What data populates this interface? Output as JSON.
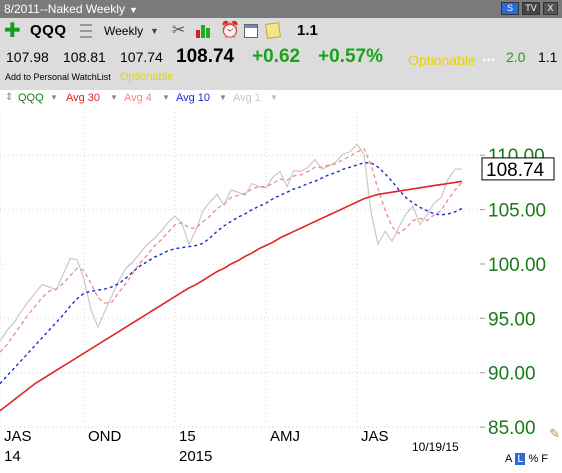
{
  "titlebar": {
    "title": "8/2011--Naked Weekly",
    "icons": [
      "S",
      "TV",
      "X"
    ]
  },
  "toolbar": {
    "symbol": "QQQ",
    "period": "Weekly",
    "version": "1.1"
  },
  "quote": {
    "open": "107.98",
    "high": "108.81",
    "low": "107.74",
    "last": "108.74",
    "change": "+0.62",
    "change_pct": "+0.57%",
    "optionable": "Optionable",
    "dots": "...",
    "extra_value": "2.0",
    "extra_value_right": "1.1",
    "watchlist_link": "Add to Personal WatchList",
    "optionable_small": "Optionable"
  },
  "legend": {
    "symbol": "QQQ",
    "avg30": "Avg 30",
    "avg4": "Avg 4",
    "avg10": "Avg 10",
    "avg1": "Avg 1"
  },
  "footer": {
    "letters": [
      "A",
      "L",
      "%",
      "F"
    ]
  },
  "colors": {
    "price_axis": "#1a7a1a",
    "avg30": "#e02424",
    "avg4": "#f08a8a",
    "avg10": "#1a2ad0",
    "avg1": "#c8c8c8",
    "grid": "#d4d4d4",
    "quote_green": "#1aa31a",
    "optionable": "#e8d400"
  },
  "icons": [
    "plus-icon",
    "list-icon",
    "chevron-down-icon",
    "tools-icon",
    "bar-chart-icon",
    "alarm-clock-icon",
    "calendar-icon",
    "note-icon",
    "pencil-icon"
  ],
  "chart_data": {
    "type": "line",
    "title": "",
    "ylim": [
      84,
      112.5
    ],
    "y_ticks": [
      85,
      90,
      95,
      100,
      105,
      110
    ],
    "y_tick_labels": [
      "85.00",
      "90.00",
      "95.00",
      "100.00",
      "105.00",
      "110.00"
    ],
    "last_price_label": "108.74",
    "last_price": 108.74,
    "x_ticks": [
      {
        "week": 0,
        "label": "JAS",
        "sub": "14"
      },
      {
        "week": 12,
        "label": "OND",
        "sub": ""
      },
      {
        "week": 25,
        "label": "15",
        "sub": "2015"
      },
      {
        "week": 38,
        "label": "AMJ",
        "sub": ""
      },
      {
        "week": 51,
        "label": "JAS",
        "sub": ""
      }
    ],
    "date_label": "10/19/15",
    "x_range": [
      0,
      66
    ],
    "grid": true,
    "series": [
      {
        "name": "Avg 1",
        "style": "solid",
        "values": [
          92.9,
          93.9,
          94.6,
          95.6,
          96.5,
          97.3,
          98.1,
          97.9,
          97.6,
          99.0,
          100.5,
          100.4,
          98.6,
          95.8,
          94.2,
          95.7,
          97.1,
          98.5,
          99.6,
          100.2,
          101.0,
          101.8,
          102.3,
          103.0,
          103.8,
          104.4,
          103.7,
          101.8,
          103.1,
          104.9,
          105.7,
          106.4,
          105.4,
          106.8,
          106.6,
          106.3,
          107.4,
          107.1,
          107.0,
          108.0,
          108.5,
          107.1,
          108.6,
          108.5,
          108.9,
          109.6,
          108.7,
          109.0,
          109.4,
          110.1,
          110.3,
          111.0,
          110.1,
          104.8,
          101.8,
          103.0,
          102.1,
          103.4,
          104.6,
          105.3,
          103.6,
          104.5,
          105.6,
          106.1,
          107.8,
          108.7,
          108.74
        ]
      },
      {
        "name": "Avg 4",
        "style": "dashed",
        "values": [
          91.9,
          92.6,
          93.5,
          94.4,
          95.3,
          96.1,
          96.9,
          97.5,
          97.7,
          98.2,
          98.9,
          99.6,
          99.4,
          98.2,
          96.9,
          96.4,
          96.5,
          97.4,
          98.2,
          99.2,
          100.1,
          100.8,
          101.6,
          102.2,
          102.9,
          103.6,
          103.8,
          103.3,
          103.3,
          103.9,
          104.4,
          105.1,
          105.5,
          106.1,
          106.3,
          106.5,
          106.9,
          107.1,
          107.1,
          107.4,
          107.8,
          107.7,
          108.1,
          108.2,
          108.5,
          108.9,
          108.9,
          109.1,
          109.2,
          109.6,
          109.9,
          110.3,
          110.6,
          109.1,
          106.9,
          105.0,
          103.4,
          102.8,
          103.3,
          104.0,
          104.2,
          104.0,
          104.5,
          104.9,
          105.9,
          106.8,
          107.5
        ]
      },
      {
        "name": "Avg 10",
        "style": "dashed",
        "values": [
          89.0,
          89.7,
          90.4,
          91.1,
          91.8,
          92.5,
          93.2,
          93.9,
          94.6,
          95.3,
          96.1,
          96.8,
          97.3,
          97.5,
          97.6,
          97.7,
          97.9,
          98.2,
          98.7,
          99.3,
          99.8,
          100.2,
          100.6,
          100.9,
          101.2,
          101.4,
          101.5,
          101.6,
          101.7,
          101.9,
          102.4,
          103.0,
          103.5,
          103.9,
          104.3,
          104.6,
          105.0,
          105.3,
          105.6,
          106.0,
          106.3,
          106.6,
          106.9,
          107.1,
          107.4,
          107.6,
          107.9,
          108.2,
          108.4,
          108.7,
          108.9,
          109.1,
          109.3,
          109.3,
          108.9,
          108.3,
          107.6,
          106.8,
          106.1,
          105.6,
          105.2,
          104.9,
          104.6,
          104.5,
          104.6,
          104.8,
          105.1
        ]
      },
      {
        "name": "Avg 30",
        "style": "solid",
        "values": [
          86.5,
          87.0,
          87.5,
          88.0,
          88.5,
          89.0,
          89.4,
          89.8,
          90.2,
          90.6,
          91.0,
          91.4,
          91.8,
          92.2,
          92.6,
          93.0,
          93.4,
          93.8,
          94.2,
          94.6,
          95.0,
          95.4,
          95.8,
          96.2,
          96.6,
          97.0,
          97.4,
          97.8,
          98.1,
          98.5,
          98.9,
          99.3,
          99.6,
          100.0,
          100.3,
          100.7,
          101.0,
          101.4,
          101.7,
          102.0,
          102.4,
          102.7,
          103.0,
          103.3,
          103.6,
          103.9,
          104.2,
          104.5,
          104.8,
          105.1,
          105.4,
          105.7,
          106.0,
          106.2,
          106.4,
          106.5,
          106.6,
          106.7,
          106.8,
          106.9,
          107.0,
          107.1,
          107.2,
          107.3,
          107.4,
          107.5,
          107.6
        ]
      }
    ]
  }
}
